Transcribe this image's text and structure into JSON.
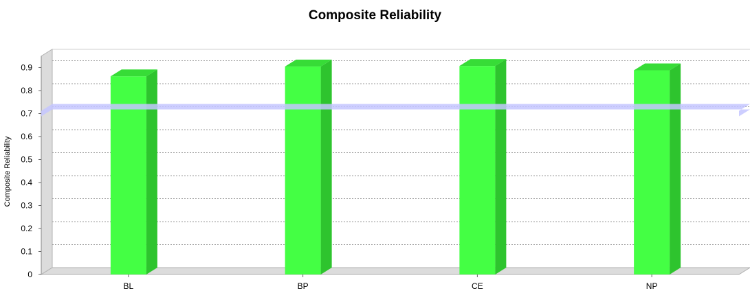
{
  "chart_data": {
    "type": "bar",
    "title": "Composite Reliability",
    "xlabel": "",
    "ylabel": "Composite Reliability",
    "categories": [
      "BL",
      "BP",
      "CE",
      "NP"
    ],
    "values": [
      0.862,
      0.905,
      0.907,
      0.888
    ],
    "ylim": [
      0,
      0.95
    ],
    "yticks": [
      "0",
      "0.1",
      "0.2",
      "0.3",
      "0.4",
      "0.5",
      "0.6",
      "0.7",
      "0.8",
      "0.9"
    ],
    "reference_line": 0.7,
    "grid": true,
    "legend": "none",
    "colors": {
      "bar_front": "#44ff44",
      "bar_side": "#2ec42e",
      "bar_top": "#37dc37",
      "reference": "#c4c6ff",
      "grid": "#9a9a9a",
      "wall": "#dcdcdc"
    }
  }
}
